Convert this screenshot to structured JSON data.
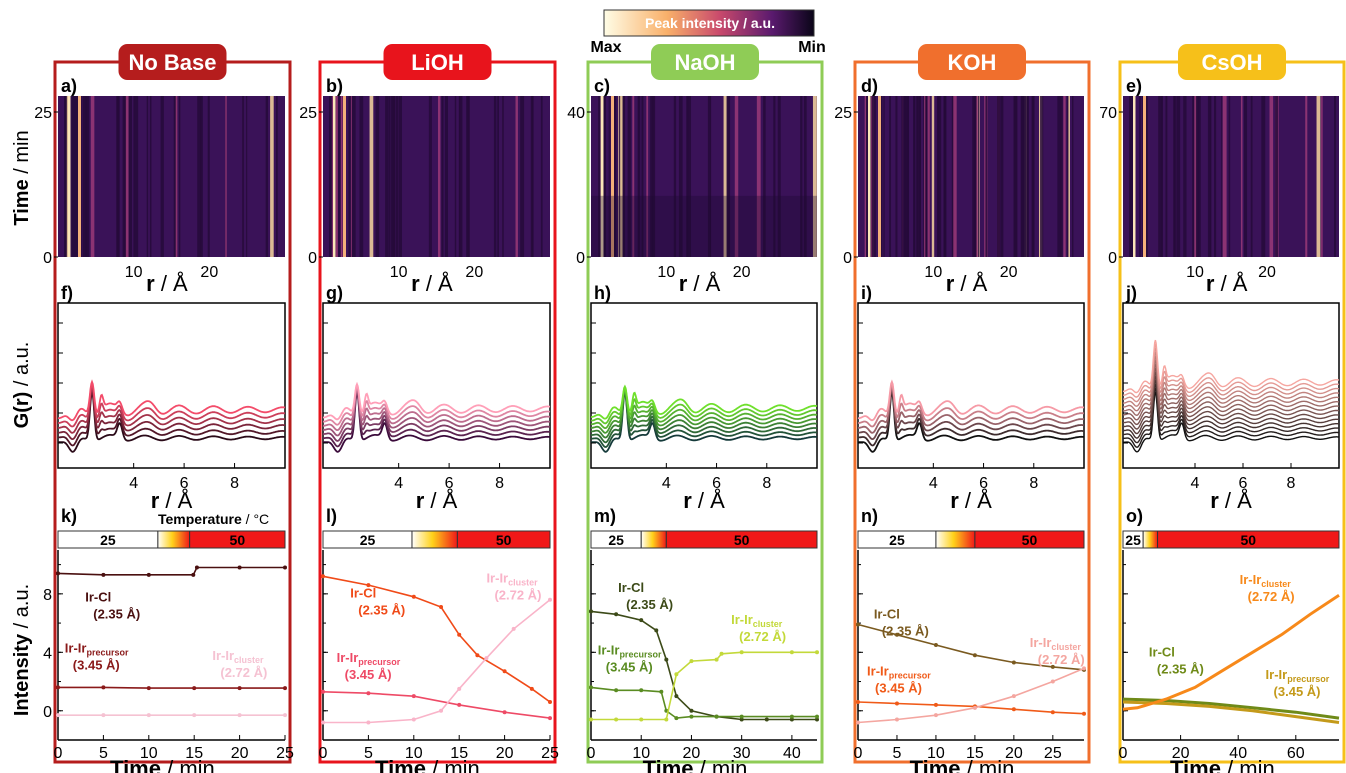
{
  "figure": {
    "colorbar_title": "Peak intensity / a.u.",
    "colorbar_max_label": "Max",
    "colorbar_min_label": "Min",
    "y_label_top": "Time",
    "y_label_top_unit": " / min",
    "y_label_mid": "G(r)",
    "y_label_mid_unit": " / a.u.",
    "y_label_bot": "Intensity",
    "y_label_bot_unit": " / a.u.",
    "x_label_r": "r",
    "x_label_r_unit": " / Å",
    "x_label_time": "Time",
    "x_label_time_unit": " / min",
    "temperature_label": "Temperature",
    "temperature_unit": " / °C"
  },
  "chart_data": [
    {
      "column": "No Base",
      "frame_color": "#b51d1d",
      "title_bg": "#b51d1d",
      "heatmap_label": "a)",
      "pdf_label": "f)",
      "kinetic_label": "k)",
      "heatmap": {
        "type": "heatmap",
        "time_max": 25,
        "time_ticks": [
          0,
          25
        ],
        "r_ticks": [
          10,
          20
        ],
        "r_range": [
          0,
          30
        ]
      },
      "pdf": {
        "type": "line",
        "r_range": [
          1,
          10
        ],
        "r_ticks": [
          4,
          6,
          8
        ],
        "n_curves": 6,
        "palette": [
          "#2a0a18",
          "#f34c6a"
        ]
      },
      "kinetics": {
        "type": "line",
        "time_range": [
          0,
          25
        ],
        "time_ticks": [
          0,
          5,
          10,
          15,
          20,
          25
        ],
        "y_ticks": [
          0,
          4,
          8
        ],
        "y_range": [
          -2,
          11
        ],
        "temperature_segments": [
          {
            "label": "25",
            "start": 0,
            "end": 11
          },
          {
            "label": "",
            "start": 11,
            "end": 14.5
          },
          {
            "label": "50",
            "start": 14.5,
            "end": 25
          }
        ],
        "series": [
          {
            "name": "Ir-Cl",
            "sub": "",
            "detail": "(2.35 Å)",
            "color": "#4a1010",
            "x": [
              0,
              5,
              10,
              14.9,
              15.3,
              20,
              25
            ],
            "y": [
              9.4,
              9.3,
              9.3,
              9.3,
              9.8,
              9.8,
              9.8
            ]
          },
          {
            "name": "Ir-Ir",
            "sub": "precursor",
            "detail": "(3.45 Å)",
            "color": "#8a1a1a",
            "x": [
              0,
              5,
              10,
              15,
              20,
              25
            ],
            "y": [
              1.6,
              1.6,
              1.55,
              1.55,
              1.55,
              1.55
            ]
          },
          {
            "name": "Ir-Ir",
            "sub": "cluster",
            "detail": "(2.72 Å)",
            "color": "#f5c2d2",
            "x": [
              0,
              5,
              10,
              15,
              20,
              25
            ],
            "y": [
              -0.3,
              -0.3,
              -0.3,
              -0.3,
              -0.3,
              -0.3
            ]
          }
        ]
      }
    },
    {
      "column": "LiOH",
      "frame_color": "#e8141c",
      "title_bg": "#e8141c",
      "heatmap_label": "b)",
      "pdf_label": "g)",
      "kinetic_label": "l)",
      "heatmap": {
        "type": "heatmap",
        "time_max": 25,
        "time_ticks": [
          0,
          25
        ],
        "r_ticks": [
          10,
          20
        ],
        "r_range": [
          0,
          30
        ]
      },
      "pdf": {
        "type": "line",
        "r_range": [
          1,
          10
        ],
        "r_ticks": [
          4,
          6,
          8
        ],
        "n_curves": 7,
        "palette": [
          "#3a0a3a",
          "#ff9fb8"
        ]
      },
      "kinetics": {
        "type": "line",
        "time_range": [
          0,
          25
        ],
        "time_ticks": [
          0,
          5,
          10,
          15,
          20,
          25
        ],
        "y_ticks": [
          0,
          4,
          8
        ],
        "y_range": [
          -2,
          11
        ],
        "temperature_segments": [
          {
            "label": "25",
            "start": 0,
            "end": 9.8
          },
          {
            "label": "",
            "start": 9.8,
            "end": 14.8
          },
          {
            "label": "50",
            "start": 14.8,
            "end": 25
          }
        ],
        "series": [
          {
            "name": "Ir-Cl",
            "sub": "",
            "detail": "(2.35 Å)",
            "color": "#f04a18",
            "x": [
              0,
              5,
              10,
              13,
              15,
              17,
              20,
              23,
              25
            ],
            "y": [
              9.2,
              8.6,
              7.8,
              7.1,
              5.2,
              3.8,
              2.7,
              1.5,
              0.6
            ]
          },
          {
            "name": "Ir-Ir",
            "sub": "precursor",
            "detail": "(3.45 Å)",
            "color": "#ee4a66",
            "x": [
              0,
              5,
              10,
              15,
              20,
              25
            ],
            "y": [
              1.3,
              1.2,
              1.0,
              0.4,
              -0.1,
              -0.5
            ]
          },
          {
            "name": "Ir-Ir",
            "sub": "cluster",
            "detail": "(2.72 Å)",
            "color": "#f9b4c9",
            "x": [
              0,
              5,
              10,
              13,
              15,
              18,
              21,
              25
            ],
            "y": [
              -0.8,
              -0.8,
              -0.6,
              0,
              1.5,
              3.6,
              5.6,
              7.6
            ]
          }
        ]
      }
    },
    {
      "column": "NaOH",
      "frame_color": "#8fcc56",
      "title_bg": "#8fcc56",
      "heatmap_label": "c)",
      "pdf_label": "h)",
      "kinetic_label": "m)",
      "heatmap": {
        "type": "heatmap",
        "time_max": 40,
        "time_ticks": [
          0,
          40
        ],
        "r_ticks": [
          10,
          20
        ],
        "r_range": [
          0,
          30
        ]
      },
      "pdf": {
        "type": "line",
        "r_range": [
          1,
          10
        ],
        "r_ticks": [
          4,
          6,
          8
        ],
        "n_curves": 8,
        "palette": [
          "#153a3a",
          "#6fe02c"
        ]
      },
      "kinetics": {
        "type": "line",
        "time_range": [
          0,
          45
        ],
        "time_ticks": [
          0,
          10,
          20,
          30,
          40
        ],
        "y_ticks": [
          0,
          4,
          8
        ],
        "y_range": [
          -2,
          11
        ],
        "temperature_segments": [
          {
            "label": "25",
            "start": 0,
            "end": 10
          },
          {
            "label": "",
            "start": 10,
            "end": 15
          },
          {
            "label": "50",
            "start": 15,
            "end": 45
          }
        ],
        "series": [
          {
            "name": "Ir-Cl",
            "sub": "",
            "detail": "(2.35 Å)",
            "color": "#3c4a18",
            "x": [
              0,
              5,
              10,
              13,
              15,
              17,
              20,
              25,
              30,
              35,
              40,
              45
            ],
            "y": [
              6.8,
              6.6,
              6.2,
              5.5,
              3.5,
              1.0,
              0.0,
              -0.4,
              -0.6,
              -0.6,
              -0.6,
              -0.6
            ]
          },
          {
            "name": "Ir-Ir",
            "sub": "precursor",
            "detail": "(3.45 Å)",
            "color": "#5a8c22",
            "x": [
              0,
              5,
              10,
              14,
              15,
              17,
              20,
              25,
              30,
              40,
              45
            ],
            "y": [
              1.6,
              1.4,
              1.4,
              1.3,
              0.0,
              -0.5,
              -0.4,
              -0.4,
              -0.4,
              -0.4,
              -0.4
            ]
          },
          {
            "name": "Ir-Ir",
            "sub": "cluster",
            "detail": "(2.72 Å)",
            "color": "#c3d93a",
            "x": [
              0,
              5,
              10,
              15,
              17,
              20,
              25,
              26,
              30,
              40,
              45
            ],
            "y": [
              -0.6,
              -0.6,
              -0.6,
              -0.6,
              2.5,
              3.4,
              3.5,
              3.9,
              4.0,
              4.0,
              4.0
            ]
          }
        ]
      }
    },
    {
      "column": "KOH",
      "frame_color": "#f06f2d",
      "title_bg": "#f06f2d",
      "heatmap_label": "d)",
      "pdf_label": "i)",
      "kinetic_label": "n)",
      "heatmap": {
        "type": "heatmap",
        "time_max": 25,
        "time_ticks": [
          0,
          25
        ],
        "r_ticks": [
          10,
          20
        ],
        "r_range": [
          0,
          30
        ]
      },
      "pdf": {
        "type": "line",
        "r_range": [
          1,
          10
        ],
        "r_ticks": [
          4,
          6,
          8
        ],
        "n_curves": 6,
        "palette": [
          "#101010",
          "#f69aa6"
        ]
      },
      "kinetics": {
        "type": "line",
        "time_range": [
          0,
          29
        ],
        "time_ticks": [
          0,
          5,
          10,
          15,
          20,
          25
        ],
        "y_ticks": [
          0,
          4,
          8
        ],
        "y_range": [
          -2,
          11
        ],
        "temperature_segments": [
          {
            "label": "25",
            "start": 0,
            "end": 10
          },
          {
            "label": "",
            "start": 10,
            "end": 15
          },
          {
            "label": "50",
            "start": 15,
            "end": 29
          }
        ],
        "series": [
          {
            "name": "Ir-Cl",
            "sub": "",
            "detail": "(2.35 Å)",
            "color": "#7a5a20",
            "x": [
              0,
              5,
              10,
              15,
              20,
              25,
              29
            ],
            "y": [
              5.9,
              5.2,
              4.5,
              3.8,
              3.3,
              3.0,
              2.8
            ]
          },
          {
            "name": "Ir-Ir",
            "sub": "precursor",
            "detail": "(3.45 Å)",
            "color": "#f05a18",
            "x": [
              0,
              5,
              10,
              15,
              20,
              25,
              29
            ],
            "y": [
              0.6,
              0.5,
              0.4,
              0.3,
              0.1,
              -0.1,
              -0.2
            ]
          },
          {
            "name": "Ir-Ir",
            "sub": "cluster",
            "detail": "(2.72 Å)",
            "color": "#f4a6a0",
            "x": [
              0,
              5,
              10,
              15,
              20,
              25,
              29
            ],
            "y": [
              -0.8,
              -0.6,
              -0.3,
              0.2,
              1.0,
              2.0,
              2.9
            ]
          }
        ]
      }
    },
    {
      "column": "CsOH",
      "frame_color": "#f6c01a",
      "title_bg": "#f6c01a",
      "heatmap_label": "e)",
      "pdf_label": "j)",
      "kinetic_label": "o)",
      "heatmap": {
        "type": "heatmap",
        "time_max": 70,
        "time_ticks": [
          0,
          70
        ],
        "r_ticks": [
          10,
          20
        ],
        "r_range": [
          0,
          30
        ]
      },
      "pdf": {
        "type": "line",
        "r_range": [
          1,
          10
        ],
        "r_ticks": [
          4,
          6,
          8
        ],
        "n_curves": 14,
        "palette": [
          "#101010",
          "#f6a6a0"
        ]
      },
      "kinetics": {
        "type": "line",
        "time_range": [
          0,
          75
        ],
        "time_ticks": [
          0,
          20,
          40,
          60
        ],
        "y_ticks": [
          0,
          4,
          8
        ],
        "y_range": [
          -2,
          11
        ],
        "temperature_segments": [
          {
            "label": "25",
            "start": 0,
            "end": 7
          },
          {
            "label": "",
            "start": 7,
            "end": 12
          },
          {
            "label": "50",
            "start": 12,
            "end": 75
          }
        ],
        "series": [
          {
            "name": "Ir-Cl",
            "sub": "",
            "detail": "(2.35 Å)",
            "color": "#6f8a18",
            "x": [
              0,
              15,
              30,
              45,
              60,
              75
            ],
            "y": [
              0.8,
              0.7,
              0.5,
              0.2,
              -0.1,
              -0.5
            ]
          },
          {
            "name": "Ir-Ir",
            "sub": "precursor",
            "detail": "(3.45 Å)",
            "color": "#c49a1a",
            "x": [
              0,
              15,
              30,
              45,
              60,
              75
            ],
            "y": [
              0.6,
              0.5,
              0.3,
              0.0,
              -0.4,
              -0.8
            ]
          },
          {
            "name": "Ir-Ir",
            "sub": "cluster",
            "detail": "(2.72 Å)",
            "color": "#f7891a",
            "x": [
              0,
              5,
              10,
              15,
              25,
              35,
              45,
              55,
              65,
              75
            ],
            "y": [
              0.1,
              0.2,
              0.5,
              0.8,
              1.6,
              2.8,
              4.0,
              5.2,
              6.6,
              7.9
            ]
          }
        ]
      }
    }
  ]
}
